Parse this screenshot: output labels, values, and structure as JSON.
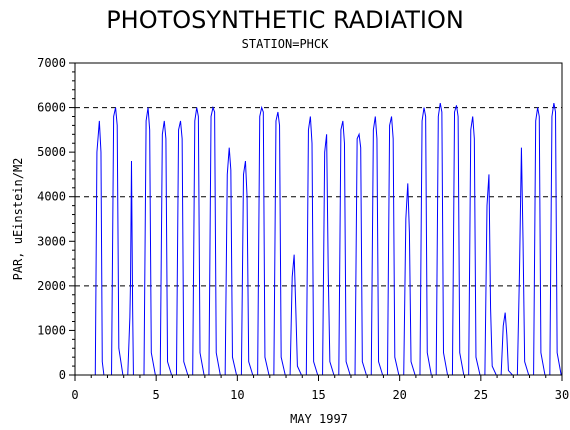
{
  "chart_data": {
    "type": "line",
    "title": "PHOTOSYNTHETIC RADIATION",
    "subtitle": "STATION=PHCK",
    "xlabel": "MAY 1997",
    "ylabel": "PAR, uEinstein/M2",
    "xlim": [
      0,
      30
    ],
    "ylim": [
      0,
      7000
    ],
    "x_ticks": [
      0,
      5,
      10,
      15,
      20,
      25,
      30
    ],
    "x_tick_labels": [
      "0",
      "5",
      "10",
      "15",
      "20",
      "25",
      "30"
    ],
    "y_ticks": [
      0,
      1000,
      2000,
      3000,
      4000,
      5000,
      6000,
      7000
    ],
    "y_tick_labels": [
      "0",
      "1000",
      "2000",
      "3000",
      "4000",
      "5000",
      "6000",
      "7000"
    ],
    "reference_lines": [
      2000,
      4000,
      6000
    ],
    "grid": false,
    "line_color": "#0000ff",
    "series": [
      {
        "x": [
          1.0,
          1.25,
          1.35,
          1.5,
          1.6,
          1.68,
          1.78,
          1.95,
          2.25,
          2.38,
          2.5,
          2.6,
          2.7,
          2.95,
          3.25,
          3.38,
          3.42,
          3.48,
          3.55,
          3.6,
          3.7,
          3.95,
          4.25,
          4.38,
          4.5,
          4.6,
          4.7,
          4.95,
          5.25,
          5.38,
          5.5,
          5.6,
          5.7,
          5.95,
          6.25,
          6.38,
          6.5,
          6.6,
          6.7,
          6.95,
          7.25,
          7.38,
          7.5,
          7.6,
          7.7,
          7.95,
          8.25,
          8.38,
          8.5,
          8.6,
          8.7,
          8.95,
          9.25,
          9.38,
          9.5,
          9.6,
          9.7,
          9.95,
          10.25,
          10.38,
          10.5,
          10.6,
          10.7,
          10.95,
          11.25,
          11.38,
          11.5,
          11.6,
          11.7,
          11.95,
          12.25,
          12.38,
          12.5,
          12.6,
          12.7,
          12.95,
          13.25,
          13.38,
          13.5,
          13.6,
          13.7,
          13.95,
          14.25,
          14.38,
          14.5,
          14.6,
          14.7,
          14.95,
          15.25,
          15.38,
          15.5,
          15.6,
          15.7,
          15.95,
          16.25,
          16.38,
          16.5,
          16.6,
          16.7,
          16.95,
          17.25,
          17.38,
          17.5,
          17.6,
          17.7,
          17.95,
          18.25,
          18.38,
          18.5,
          18.6,
          18.7,
          18.95,
          19.25,
          19.38,
          19.5,
          19.6,
          19.7,
          19.95,
          20.25,
          20.38,
          20.5,
          20.6,
          20.7,
          20.95,
          21.25,
          21.38,
          21.5,
          21.6,
          21.7,
          21.95,
          22.25,
          22.38,
          22.5,
          22.6,
          22.7,
          22.95,
          23.25,
          23.38,
          23.5,
          23.6,
          23.7,
          23.95,
          24.25,
          24.38,
          24.5,
          24.6,
          24.7,
          24.95,
          25.25,
          25.38,
          25.5,
          25.6,
          25.7,
          25.95,
          26.25,
          26.38,
          26.5,
          26.6,
          26.7,
          26.95,
          27.25,
          27.38,
          27.5,
          27.6,
          27.7,
          27.95,
          28.25,
          28.38,
          28.5,
          28.6,
          28.7,
          28.95,
          29.25,
          29.38,
          29.5,
          29.6,
          29.7,
          29.95
        ],
        "y": [
          0,
          0,
          5000,
          5700,
          5000,
          300,
          0,
          0,
          0,
          5800,
          6000,
          5600,
          600,
          0,
          0,
          1300,
          2100,
          4800,
          1500,
          0,
          0,
          0,
          0,
          5700,
          6000,
          5500,
          500,
          0,
          0,
          5400,
          5700,
          5300,
          300,
          0,
          0,
          5500,
          5700,
          5300,
          300,
          0,
          0,
          5700,
          6000,
          5800,
          500,
          0,
          0,
          5800,
          6000,
          5900,
          500,
          0,
          0,
          4500,
          5100,
          4600,
          400,
          0,
          0,
          4500,
          4800,
          4000,
          300,
          0,
          0,
          5800,
          6000,
          5900,
          400,
          0,
          0,
          5700,
          5900,
          5600,
          400,
          0,
          0,
          2200,
          2700,
          1500,
          200,
          0,
          0,
          5500,
          5800,
          5200,
          300,
          0,
          0,
          5000,
          5400,
          2300,
          300,
          0,
          0,
          5500,
          5700,
          5200,
          300,
          0,
          0,
          5300,
          5400,
          5100,
          300,
          0,
          0,
          5500,
          5800,
          5300,
          300,
          0,
          0,
          5600,
          5800,
          5300,
          400,
          0,
          0,
          3500,
          4300,
          3200,
          300,
          0,
          0,
          5700,
          6000,
          5800,
          500,
          0,
          0,
          5800,
          6100,
          5900,
          500,
          0,
          0,
          5900,
          6050,
          5800,
          500,
          0,
          0,
          5500,
          5800,
          5300,
          400,
          0,
          0,
          3800,
          4500,
          1500,
          200,
          0,
          0,
          1100,
          1400,
          900,
          100,
          0,
          0,
          2300,
          5100,
          3000,
          300,
          0,
          0,
          5700,
          6000,
          5800,
          500,
          0,
          0,
          5800,
          6100,
          5900,
          500,
          0
        ]
      }
    ]
  }
}
